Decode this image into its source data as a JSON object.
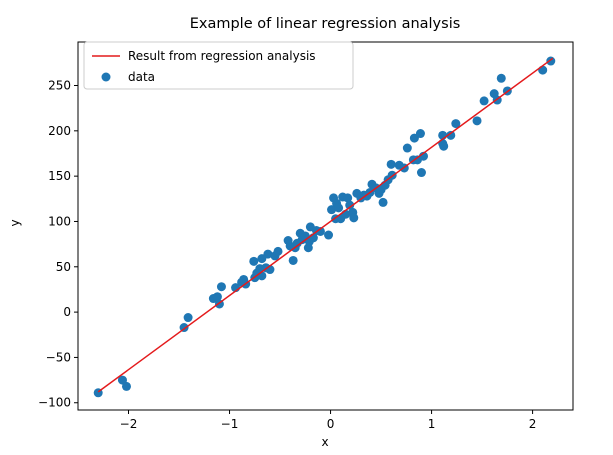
{
  "chart_data": {
    "type": "scatter",
    "title": "Example of linear regression analysis",
    "xlabel": "x",
    "ylabel": "y",
    "xlim": [
      -2.5,
      2.4
    ],
    "ylim": [
      -108,
      298
    ],
    "xticks": [
      -2,
      -1,
      0,
      1,
      2
    ],
    "yticks": [
      -100,
      -50,
      0,
      50,
      100,
      150,
      200,
      250
    ],
    "grid": false,
    "legend_position": "top-left",
    "regression_line": {
      "name": "Result from regression analysis",
      "color": "#e41a1c",
      "x": [
        -2.3,
        2.2
      ],
      "y": [
        -88,
        280
      ]
    },
    "scatter": {
      "name": "data",
      "color": "#1f77b4",
      "points": [
        [
          -2.3,
          -89
        ],
        [
          -2.06,
          -75
        ],
        [
          -2.02,
          -82
        ],
        [
          -1.45,
          -17
        ],
        [
          -1.41,
          -6
        ],
        [
          -1.16,
          15
        ],
        [
          -1.12,
          17
        ],
        [
          -1.1,
          9
        ],
        [
          -1.08,
          28
        ],
        [
          -0.94,
          27
        ],
        [
          -0.88,
          33
        ],
        [
          -0.86,
          36
        ],
        [
          -0.84,
          31
        ],
        [
          -0.76,
          56
        ],
        [
          -0.75,
          38
        ],
        [
          -0.73,
          43
        ],
        [
          -0.7,
          48
        ],
        [
          -0.68,
          40
        ],
        [
          -0.68,
          59
        ],
        [
          -0.64,
          49
        ],
        [
          -0.62,
          64
        ],
        [
          -0.6,
          47
        ],
        [
          -0.55,
          62
        ],
        [
          -0.52,
          67
        ],
        [
          -0.42,
          79
        ],
        [
          -0.4,
          73
        ],
        [
          -0.37,
          57
        ],
        [
          -0.35,
          71
        ],
        [
          -0.33,
          76
        ],
        [
          -0.3,
          87
        ],
        [
          -0.28,
          80
        ],
        [
          -0.25,
          84
        ],
        [
          -0.22,
          71
        ],
        [
          -0.21,
          78
        ],
        [
          -0.2,
          94
        ],
        [
          -0.17,
          82
        ],
        [
          -0.14,
          90
        ],
        [
          -0.1,
          89
        ],
        [
          -0.02,
          85
        ],
        [
          0.01,
          113
        ],
        [
          0.03,
          126
        ],
        [
          0.05,
          103
        ],
        [
          0.06,
          120
        ],
        [
          0.08,
          115
        ],
        [
          0.1,
          103
        ],
        [
          0.12,
          127
        ],
        [
          0.15,
          108
        ],
        [
          0.17,
          126
        ],
        [
          0.19,
          118
        ],
        [
          0.22,
          110
        ],
        [
          0.23,
          104
        ],
        [
          0.26,
          131
        ],
        [
          0.3,
          126
        ],
        [
          0.33,
          129
        ],
        [
          0.36,
          128
        ],
        [
          0.39,
          132
        ],
        [
          0.41,
          141
        ],
        [
          0.45,
          137
        ],
        [
          0.48,
          131
        ],
        [
          0.5,
          135
        ],
        [
          0.52,
          121
        ],
        [
          0.54,
          140
        ],
        [
          0.57,
          146
        ],
        [
          0.6,
          163
        ],
        [
          0.61,
          151
        ],
        [
          0.68,
          162
        ],
        [
          0.73,
          159
        ],
        [
          0.76,
          181
        ],
        [
          0.82,
          168
        ],
        [
          0.83,
          192
        ],
        [
          0.86,
          168
        ],
        [
          0.89,
          197
        ],
        [
          0.9,
          154
        ],
        [
          0.92,
          172
        ],
        [
          1.11,
          195
        ],
        [
          1.11,
          186
        ],
        [
          1.12,
          183
        ],
        [
          1.19,
          195
        ],
        [
          1.24,
          208
        ],
        [
          1.45,
          211
        ],
        [
          1.52,
          233
        ],
        [
          1.62,
          241
        ],
        [
          1.65,
          234
        ],
        [
          1.69,
          258
        ],
        [
          1.75,
          244
        ],
        [
          2.1,
          267
        ],
        [
          2.18,
          277
        ]
      ]
    }
  }
}
